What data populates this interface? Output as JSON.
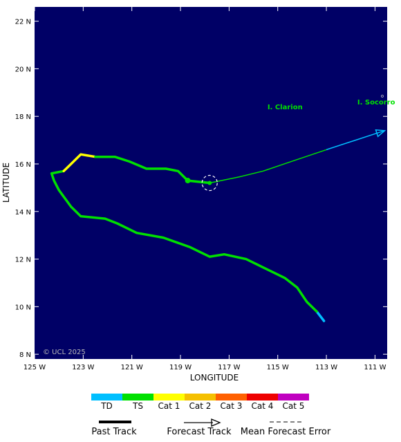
{
  "map": {
    "axes": {
      "xlabel": "LONGITUDE",
      "ylabel": "LATITUDE",
      "lon_ticks": [
        "125 W",
        "123 W",
        "121 W",
        "119 W",
        "117 W",
        "115 W",
        "113 W",
        "111 W"
      ],
      "lat_ticks": [
        "22 N",
        "20 N",
        "18 N",
        "16 N",
        "14 N",
        "12 N",
        "10 N",
        "8 N"
      ],
      "lon_range": [
        -125,
        -110.5
      ],
      "lat_range": [
        7.8,
        22.6
      ]
    },
    "background_color": "#000066",
    "places": [
      {
        "name": "I. Clarion",
        "lon": -114.7,
        "lat": 18.3
      },
      {
        "name": "I. Socorro",
        "lon": -110.95,
        "lat": 18.5
      }
    ],
    "copyright": "© UCL 2025",
    "storm_current_position": {
      "lon": -117.8,
      "lat": 15.2
    },
    "past_track_segments": [
      {
        "category": "TD",
        "points": [
          [
            -113.1,
            9.4
          ],
          [
            -113.4,
            9.8
          ]
        ]
      },
      {
        "category": "TS",
        "points": [
          [
            -113.4,
            9.8
          ],
          [
            -113.8,
            10.2
          ],
          [
            -114.2,
            10.8
          ],
          [
            -114.7,
            11.2
          ],
          [
            -115.5,
            11.6
          ],
          [
            -116.3,
            12.0
          ],
          [
            -117.2,
            12.2
          ],
          [
            -117.8,
            12.1
          ],
          [
            -118.6,
            12.5
          ],
          [
            -119.7,
            12.9
          ],
          [
            -120.8,
            13.1
          ],
          [
            -121.6,
            13.5
          ],
          [
            -122.1,
            13.7
          ],
          [
            -123.1,
            13.8
          ],
          [
            -123.5,
            14.2
          ],
          [
            -124.0,
            14.9
          ],
          [
            -124.2,
            15.3
          ],
          [
            -124.3,
            15.6
          ],
          [
            -123.8,
            15.7
          ]
        ]
      },
      {
        "category": "Cat 1",
        "points": [
          [
            -123.8,
            15.7
          ],
          [
            -123.5,
            16.0
          ],
          [
            -123.1,
            16.4
          ],
          [
            -122.5,
            16.3
          ]
        ]
      },
      {
        "category": "TS",
        "points": [
          [
            -122.5,
            16.3
          ],
          [
            -121.7,
            16.3
          ],
          [
            -121.1,
            16.1
          ],
          [
            -120.4,
            15.8
          ],
          [
            -119.6,
            15.8
          ],
          [
            -119.1,
            15.7
          ],
          [
            -118.9,
            15.5
          ],
          [
            -118.7,
            15.3
          ],
          [
            -117.8,
            15.2
          ]
        ]
      }
    ],
    "past_track_points": [
      {
        "lon": -118.7,
        "lat": 15.3
      },
      {
        "lon": -117.8,
        "lat": 15.2
      }
    ],
    "forecast_track_segments": [
      {
        "category": "TS",
        "points": [
          [
            -117.8,
            15.2
          ],
          [
            -116.6,
            15.45
          ],
          [
            -115.6,
            15.7
          ],
          [
            -114.3,
            16.15
          ],
          [
            -113.0,
            16.6
          ]
        ]
      },
      {
        "category": "TD",
        "points": [
          [
            -113.0,
            16.6
          ],
          [
            -111.8,
            17.0
          ],
          [
            -110.6,
            17.4
          ]
        ]
      }
    ]
  },
  "legend": {
    "categories": [
      {
        "label": "TD",
        "color": "#00bfff"
      },
      {
        "label": "TS",
        "color": "#00e000"
      },
      {
        "label": "Cat 1",
        "color": "#ffff00"
      },
      {
        "label": "Cat 2",
        "color": "#f5c000"
      },
      {
        "label": "Cat 3",
        "color": "#ff6000"
      },
      {
        "label": "Cat 4",
        "color": "#ee0000"
      },
      {
        "label": "Cat 5",
        "color": "#c000c0"
      }
    ],
    "keys": {
      "past_track": "Past Track",
      "forecast_track": "Forecast Track",
      "mean_forecast_error": "Mean Forecast Error"
    }
  }
}
